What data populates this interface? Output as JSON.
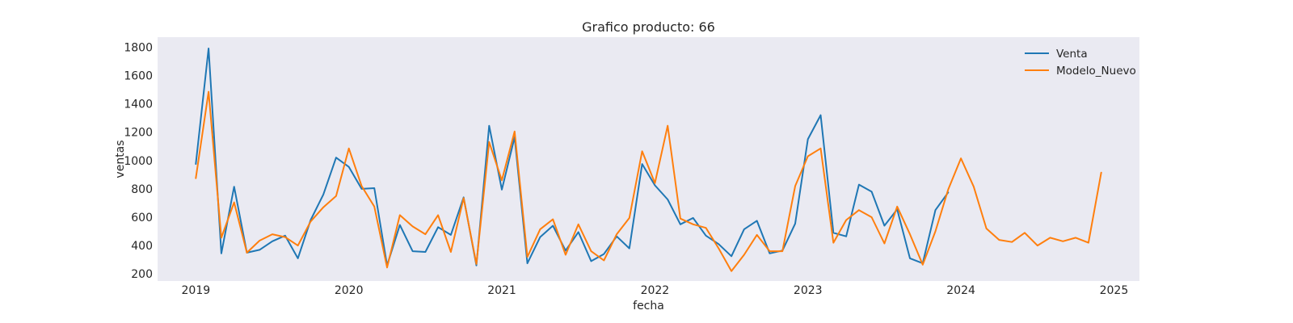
{
  "chart_data": {
    "type": "line",
    "title": "Grafico producto: 66",
    "xlabel": "fecha",
    "ylabel": "ventas",
    "x_axis": "dates",
    "x_range": [
      "2018-10-01",
      "2025-03-01"
    ],
    "ylim": [
      150,
      1870
    ],
    "x_ticks": [
      "2019",
      "2020",
      "2021",
      "2022",
      "2023",
      "2024",
      "2025"
    ],
    "y_ticks": [
      200,
      400,
      600,
      800,
      1000,
      1200,
      1400,
      1600,
      1800
    ],
    "grid": false,
    "background": "#eaeaf2",
    "legend_position": "top-right",
    "series": [
      {
        "name": "Venta",
        "color": "#1f77b4",
        "x": [
          "2019-01",
          "2019-02",
          "2019-03",
          "2019-04",
          "2019-05",
          "2019-06",
          "2019-07",
          "2019-08",
          "2019-09",
          "2019-10",
          "2019-11",
          "2019-12",
          "2020-01",
          "2020-02",
          "2020-03",
          "2020-04",
          "2020-05",
          "2020-06",
          "2020-07",
          "2020-08",
          "2020-09",
          "2020-10",
          "2020-11",
          "2020-12",
          "2021-01",
          "2021-02",
          "2021-03",
          "2021-04",
          "2021-05",
          "2021-06",
          "2021-07",
          "2021-08",
          "2021-09",
          "2021-10",
          "2021-11",
          "2021-12",
          "2022-01",
          "2022-02",
          "2022-03",
          "2022-04",
          "2022-05",
          "2022-06",
          "2022-07",
          "2022-08",
          "2022-09",
          "2022-10",
          "2022-11",
          "2022-12",
          "2023-01",
          "2023-02",
          "2023-03",
          "2023-04",
          "2023-05",
          "2023-06",
          "2023-07",
          "2023-08",
          "2023-09",
          "2023-10",
          "2023-11",
          "2023-12"
        ],
        "values": [
          975,
          1790,
          345,
          815,
          350,
          370,
          430,
          470,
          310,
          580,
          760,
          1020,
          955,
          800,
          805,
          260,
          545,
          360,
          355,
          530,
          475,
          740,
          260,
          1245,
          795,
          1165,
          275,
          460,
          540,
          365,
          495,
          290,
          340,
          465,
          380,
          975,
          825,
          725,
          550,
          595,
          470,
          410,
          325,
          515,
          575,
          345,
          365,
          555,
          1150,
          1320,
          490,
          465,
          830,
          780,
          540,
          655,
          310,
          275,
          650,
          775
        ]
      },
      {
        "name": "Modelo_Nuevo",
        "color": "#ff7f0e",
        "x": [
          "2019-01",
          "2019-02",
          "2019-03",
          "2019-04",
          "2019-05",
          "2019-06",
          "2019-07",
          "2019-08",
          "2019-09",
          "2019-10",
          "2019-11",
          "2019-12",
          "2020-01",
          "2020-02",
          "2020-03",
          "2020-04",
          "2020-05",
          "2020-06",
          "2020-07",
          "2020-08",
          "2020-09",
          "2020-10",
          "2020-11",
          "2020-12",
          "2021-01",
          "2021-02",
          "2021-03",
          "2021-04",
          "2021-05",
          "2021-06",
          "2021-07",
          "2021-08",
          "2021-09",
          "2021-10",
          "2021-11",
          "2021-12",
          "2022-01",
          "2022-02",
          "2022-03",
          "2022-04",
          "2022-05",
          "2022-06",
          "2022-07",
          "2022-08",
          "2022-09",
          "2022-10",
          "2022-11",
          "2022-12",
          "2023-01",
          "2023-02",
          "2023-03",
          "2023-04",
          "2023-05",
          "2023-06",
          "2023-07",
          "2023-08",
          "2023-09",
          "2023-10",
          "2023-11",
          "2023-12",
          "2024-01",
          "2024-02",
          "2024-03",
          "2024-04",
          "2024-05",
          "2024-06",
          "2024-07",
          "2024-08",
          "2024-09",
          "2024-10",
          "2024-11",
          "2024-12"
        ],
        "values": [
          875,
          1485,
          455,
          705,
          350,
          435,
          480,
          460,
          400,
          570,
          670,
          750,
          1085,
          820,
          675,
          245,
          615,
          535,
          480,
          615,
          355,
          735,
          270,
          1130,
          860,
          1205,
          320,
          515,
          585,
          335,
          550,
          360,
          295,
          480,
          595,
          1065,
          840,
          1245,
          590,
          550,
          525,
          380,
          220,
          335,
          475,
          360,
          360,
          820,
          1030,
          1085,
          420,
          580,
          650,
          600,
          415,
          675,
          480,
          265,
          500,
          795,
          1015,
          815,
          520,
          440,
          425,
          490,
          400,
          455,
          430,
          455,
          420,
          915
        ]
      }
    ]
  }
}
